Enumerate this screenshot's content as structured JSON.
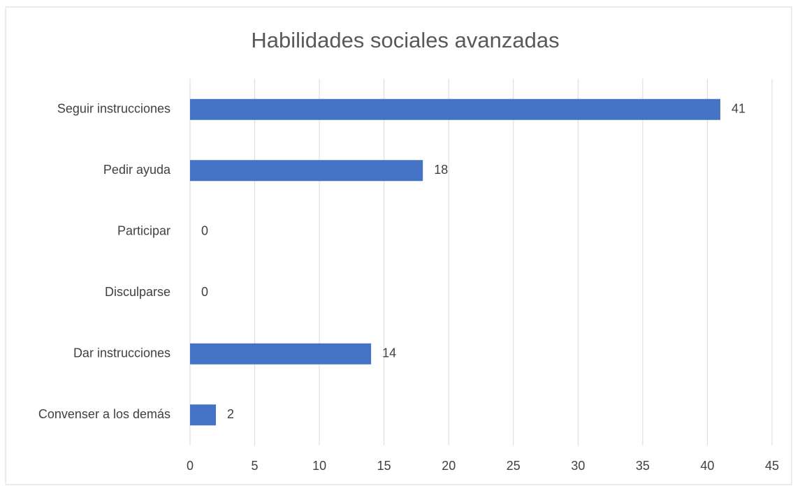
{
  "chart_data": {
    "type": "bar",
    "orientation": "horizontal",
    "title": "Habilidades sociales avanzadas",
    "categories": [
      "Seguir instrucciones",
      "Pedir ayuda",
      "Participar",
      "Disculparse",
      "Dar instrucciones",
      "Convenser a los demás"
    ],
    "values": [
      41,
      18,
      0,
      0,
      14,
      2
    ],
    "color": "#4472c4",
    "xlim": [
      0,
      45
    ],
    "xticks": [
      0,
      5,
      10,
      15,
      20,
      25,
      30,
      35,
      40,
      45
    ],
    "grid": true
  }
}
